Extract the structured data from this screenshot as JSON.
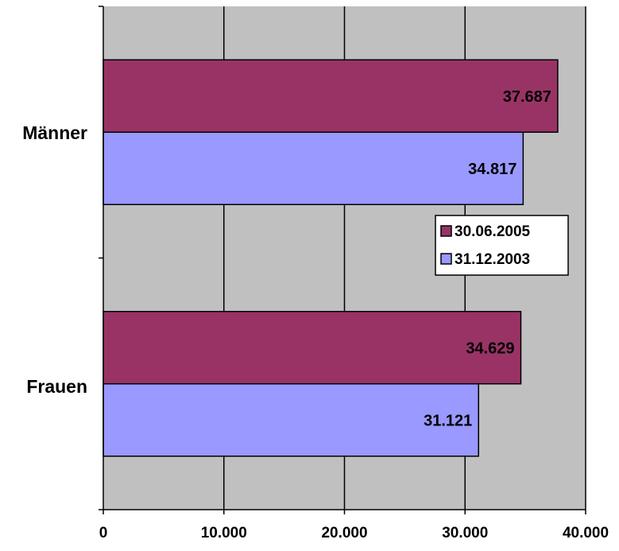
{
  "chart_data": {
    "type": "bar",
    "orientation": "horizontal",
    "categories": [
      "Männer",
      "Frauen"
    ],
    "series": [
      {
        "name": "30.06.2005",
        "values": [
          37687,
          34629
        ],
        "labels": [
          "37.687",
          "34.629"
        ],
        "color": "#993366"
      },
      {
        "name": "31.12.2003",
        "values": [
          34817,
          31121
        ],
        "labels": [
          "34.817",
          "31.121"
        ],
        "color": "#9999ff"
      }
    ],
    "xlim": [
      0,
      40000
    ],
    "xticks": [
      0,
      10000,
      20000,
      30000,
      40000
    ],
    "xtick_labels": [
      "0",
      "10.000",
      "20.000",
      "30.000",
      "40.000"
    ],
    "grid": true,
    "plot_background": "#c0c0c0",
    "legend_position": "right"
  }
}
